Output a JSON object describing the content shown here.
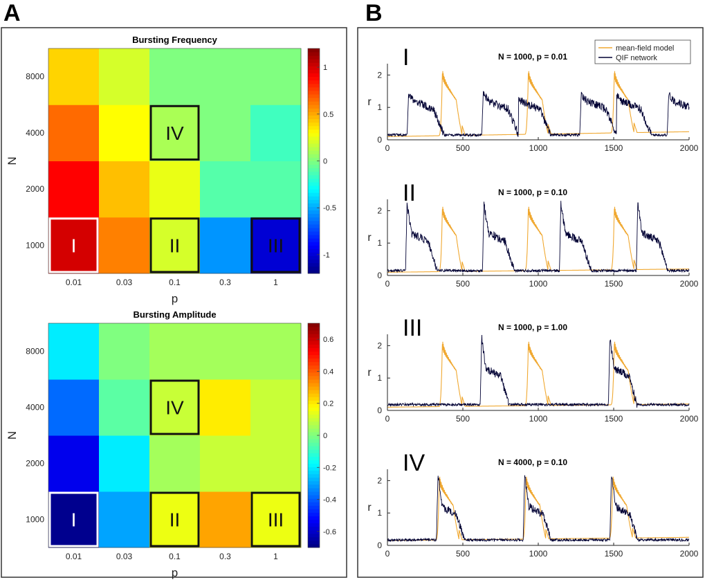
{
  "panels": [
    "A",
    "B"
  ],
  "chart_data": [
    {
      "type": "heatmap",
      "title": "Bursting Frequency",
      "xlabel": "p",
      "ylabel": "N",
      "x_categories": [
        "0.01",
        "0.03",
        "0.1",
        "0.3",
        "1"
      ],
      "y_categories": [
        "1000",
        "2000",
        "4000",
        "8000"
      ],
      "values": [
        [
          1.0,
          0.6,
          0.2,
          -0.55,
          -1.0
        ],
        [
          0.9,
          0.45,
          0.25,
          -0.1,
          -0.1
        ],
        [
          0.65,
          0.3,
          0.1,
          0.0,
          -0.15
        ],
        [
          0.4,
          0.2,
          0.0,
          0.0,
          0.0
        ]
      ],
      "colorbar": {
        "min": -1.2,
        "max": 1.2,
        "ticks": [
          -1,
          -0.5,
          0,
          0.5,
          1
        ],
        "tick_labels": [
          "-1",
          "-0.5",
          "0",
          "0.5",
          "1"
        ]
      },
      "boxes": [
        {
          "label": "I",
          "x": "0.01",
          "y": "1000",
          "border": "white",
          "text_color": "white"
        },
        {
          "label": "II",
          "x": "0.1",
          "y": "1000",
          "border": "black",
          "text_color": "black"
        },
        {
          "label": "III",
          "x": "1",
          "y": "1000",
          "border": "black",
          "text_color": "black"
        },
        {
          "label": "IV",
          "x": "0.1",
          "y": "4000",
          "border": "black",
          "text_color": "black"
        }
      ]
    },
    {
      "type": "heatmap",
      "title": "Bursting Amplitude",
      "xlabel": "p",
      "ylabel": "N",
      "x_categories": [
        "0.01",
        "0.03",
        "0.1",
        "0.3",
        "1"
      ],
      "y_categories": [
        "1000",
        "2000",
        "4000",
        "8000"
      ],
      "values": [
        [
          -0.68,
          -0.3,
          0.15,
          0.3,
          0.15
        ],
        [
          -0.55,
          -0.2,
          0.05,
          0.1,
          0.1
        ],
        [
          -0.38,
          -0.05,
          0.1,
          0.2,
          0.1
        ],
        [
          -0.2,
          0.0,
          0.05,
          0.05,
          0.05
        ]
      ],
      "colorbar": {
        "min": -0.7,
        "max": 0.7,
        "ticks": [
          -0.6,
          -0.4,
          -0.2,
          0,
          0.2,
          0.4,
          0.6
        ],
        "tick_labels": [
          "-0.6",
          "-0.4",
          "-0.2",
          "0",
          "0.2",
          "0.4",
          "0.6"
        ]
      },
      "boxes": [
        {
          "label": "I",
          "x": "0.01",
          "y": "1000",
          "border": "white",
          "text_color": "white"
        },
        {
          "label": "II",
          "x": "0.1",
          "y": "1000",
          "border": "black",
          "text_color": "black"
        },
        {
          "label": "III",
          "x": "1",
          "y": "1000",
          "border": "black",
          "text_color": "black"
        },
        {
          "label": "IV",
          "x": "0.1",
          "y": "4000",
          "border": "black",
          "text_color": "black"
        }
      ]
    },
    {
      "type": "line",
      "roman": "I",
      "title": "N = 1000, p = 0.01",
      "ylabel": "r",
      "xlim": [
        0,
        2000
      ],
      "ylim": [
        0,
        2.35
      ],
      "xticks": [
        0,
        500,
        1000,
        1500,
        2000
      ],
      "yticks": [
        0,
        1,
        2
      ],
      "legend": {
        "placement": "top-right",
        "entries": [
          "mean-field model",
          "QIF network"
        ]
      },
      "series": [
        {
          "name": "mean-field model",
          "color": "#f0a830",
          "bursts": [
            365,
            935,
            1505
          ],
          "peak": 2.3,
          "decay_end": 1.0,
          "duration": 130,
          "baseline_start": 0.1,
          "baseline_end": 0.25
        },
        {
          "name": "QIF network",
          "color": "#000033",
          "bursts": [
            140,
            635,
            845,
            1285,
            1515,
            1865
          ],
          "peak": 1.4,
          "plateau": 1.2,
          "duration": 235,
          "baseline": 0.15
        }
      ]
    },
    {
      "type": "line",
      "roman": "II",
      "title": "N = 1000, p = 0.10",
      "ylabel": "r",
      "xlim": [
        0,
        2000
      ],
      "ylim": [
        0,
        2.35
      ],
      "xticks": [
        0,
        500,
        1000,
        1500,
        2000
      ],
      "yticks": [
        0,
        1,
        2
      ],
      "series": [
        {
          "name": "mean-field model",
          "color": "#f0a830",
          "bursts": [
            365,
            935,
            1505
          ],
          "peak": 2.3,
          "decay_end": 1.0,
          "duration": 130,
          "baseline_start": 0.1,
          "baseline_end": 0.2
        },
        {
          "name": "QIF network",
          "color": "#000033",
          "bursts": [
            130,
            640,
            1150,
            1660
          ],
          "peak": 2.2,
          "plateau": 1.3,
          "duration": 200,
          "baseline": 0.15
        }
      ]
    },
    {
      "type": "line",
      "roman": "III",
      "title": "N = 1000, p = 1.00",
      "ylabel": "r",
      "xlim": [
        0,
        2000
      ],
      "ylim": [
        0,
        2.35
      ],
      "xticks": [
        0,
        500,
        1000,
        1500,
        2000
      ],
      "yticks": [
        0,
        1,
        2
      ],
      "series": [
        {
          "name": "mean-field model",
          "color": "#f0a830",
          "bursts": [
            365,
            935,
            1505
          ],
          "peak": 2.3,
          "decay_end": 1.0,
          "duration": 130,
          "baseline_start": 0.1,
          "baseline_end": 0.2
        },
        {
          "name": "QIF network",
          "color": "#000033",
          "bursts": [
            625,
            1475
          ],
          "peak": 2.25,
          "plateau": 1.3,
          "duration": 180,
          "baseline": 0.18
        }
      ]
    },
    {
      "type": "line",
      "roman": "IV",
      "title": "N = 4000, p = 0.10",
      "ylabel": "r",
      "xlim": [
        0,
        2000
      ],
      "ylim": [
        0,
        2.35
      ],
      "xticks": [
        0,
        500,
        1000,
        1500,
        2000
      ],
      "yticks": [
        0,
        1,
        2
      ],
      "series": [
        {
          "name": "mean-field model",
          "color": "#f0a830",
          "bursts": [
            345,
            920,
            1495
          ],
          "peak": 2.3,
          "decay_end": 1.0,
          "duration": 130,
          "baseline_start": 0.15,
          "baseline_end": 0.25
        },
        {
          "name": "QIF network",
          "color": "#000033",
          "bursts": [
            335,
            910,
            1485
          ],
          "peak": 2.2,
          "plateau": 1.2,
          "duration": 175,
          "baseline": 0.17
        }
      ]
    }
  ]
}
